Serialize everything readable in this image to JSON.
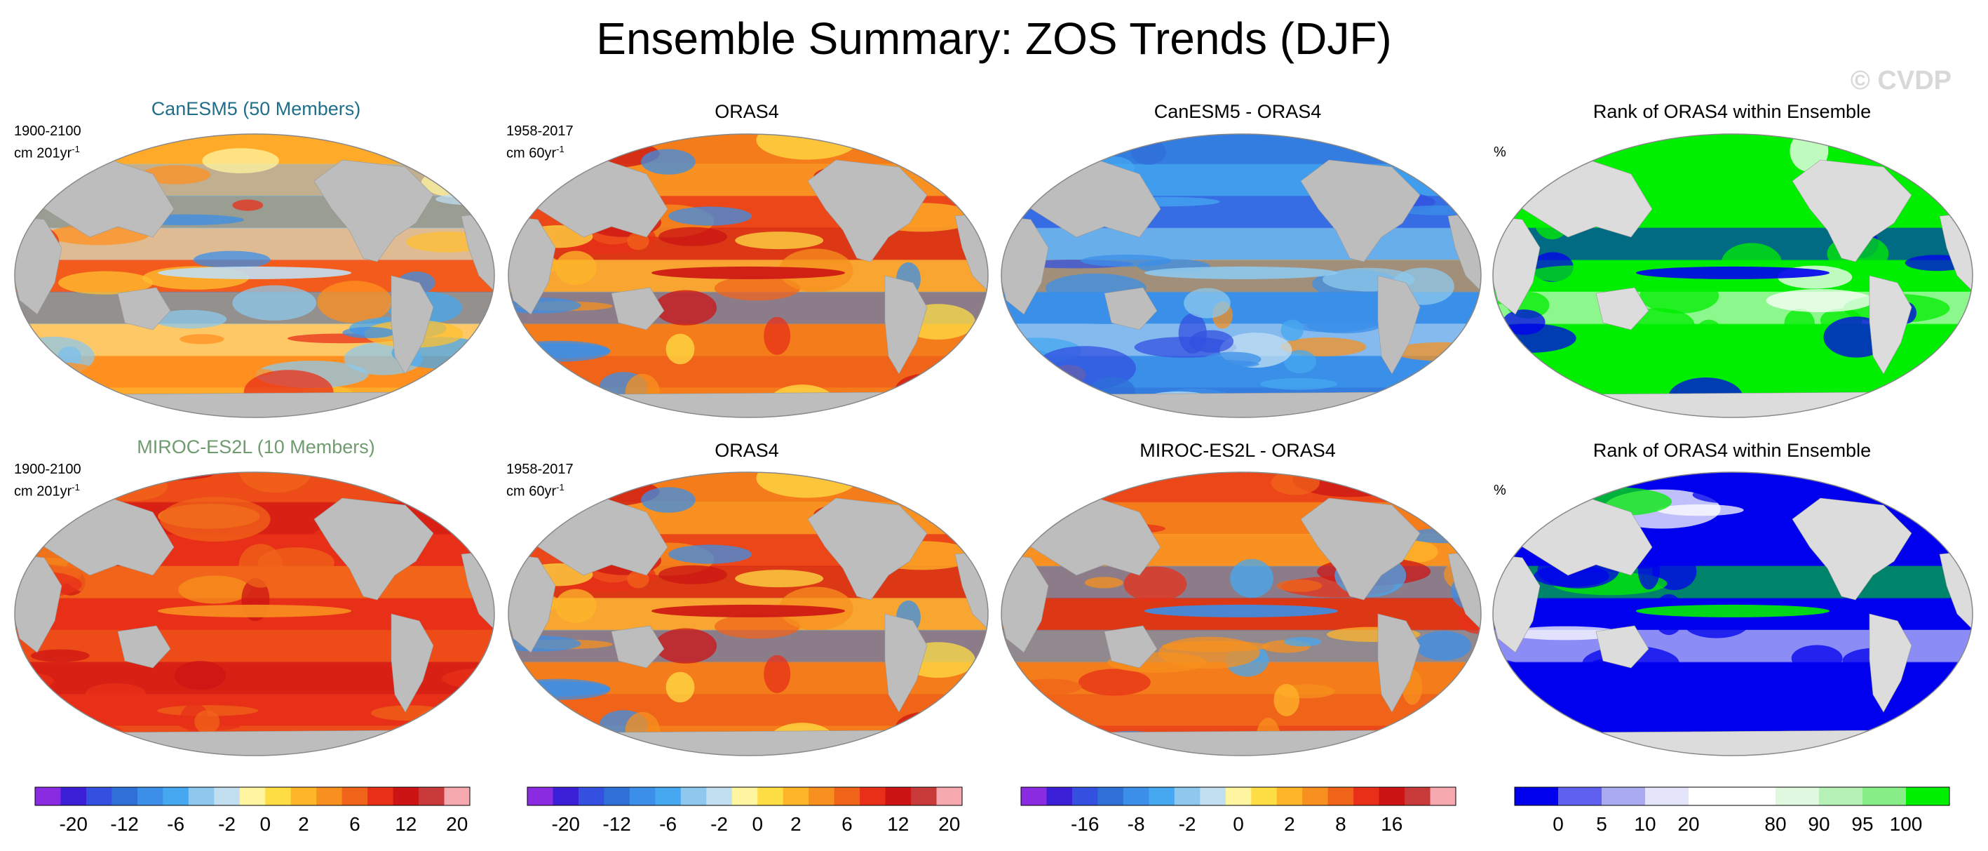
{
  "title": "Ensemble Summary: ZOS Trends (DJF)",
  "watermark": "© CVDP",
  "rows": [
    {
      "model_label": "CanESM5 (50 Members)",
      "model_color": "#1f6f8b",
      "model_period": "1900-2100",
      "model_units": "cm 201yr",
      "obs_period": "1958-2017",
      "obs_units": "cm 60yr",
      "units_superscript": "-1",
      "obs_title": "ORAS4",
      "diff_title": "CanESM5 - ORAS4",
      "rank_title": "Rank of ORAS4 within Ensemble",
      "rank_units": "%"
    },
    {
      "model_label": "MIROC-ES2L (10 Members)",
      "model_color": "#6f9b6f",
      "model_period": "1900-2100",
      "model_units": "cm 201yr",
      "obs_period": "1958-2017",
      "obs_units": "cm 60yr",
      "units_superscript": "-1",
      "obs_title": "ORAS4",
      "diff_title": "MIROC-ES2L - ORAS4",
      "rank_title": "Rank of ORAS4 within Ensemble",
      "rank_units": "%"
    }
  ],
  "chart_data": [
    {
      "type": "colorbar",
      "name": "trend",
      "colors": [
        "#8a2be2",
        "#3b1fd6",
        "#3350e0",
        "#2f6fd8",
        "#3b8fe8",
        "#45a8f0",
        "#8ec8ec",
        "#c2dff2",
        "#fff5a0",
        "#ffdd45",
        "#ffb52a",
        "#f7901e",
        "#f0641a",
        "#e83018",
        "#cc1414",
        "#c83a3a",
        "#f5a9ae"
      ],
      "tick_labels": [
        "-20",
        "-12",
        "-6",
        "-2",
        "0",
        "2",
        "6",
        "12",
        "20"
      ]
    },
    {
      "type": "colorbar",
      "name": "difference",
      "colors": [
        "#8a2be2",
        "#3b1fd6",
        "#3350e0",
        "#2f6fd8",
        "#3b8fe8",
        "#45a8f0",
        "#8ec8ec",
        "#c2dff2",
        "#fff5a0",
        "#ffdd45",
        "#ffb52a",
        "#f7901e",
        "#f0641a",
        "#e83018",
        "#cc1414",
        "#c83a3a",
        "#f5a9ae"
      ],
      "tick_labels": [
        "-16",
        "-8",
        "-2",
        "0",
        "2",
        "8",
        "16"
      ]
    },
    {
      "type": "colorbar",
      "name": "rank",
      "colors": [
        "#0000ee",
        "#5f5ff0",
        "#aaaaf2",
        "#e4e4fa",
        "#ffffff",
        "#ffffff",
        "#e0f8e0",
        "#b6f2b6",
        "#88ee88",
        "#00ee00"
      ],
      "tick_labels": [
        "0",
        "5",
        "10",
        "20",
        "80",
        "90",
        "95",
        "100"
      ]
    }
  ]
}
